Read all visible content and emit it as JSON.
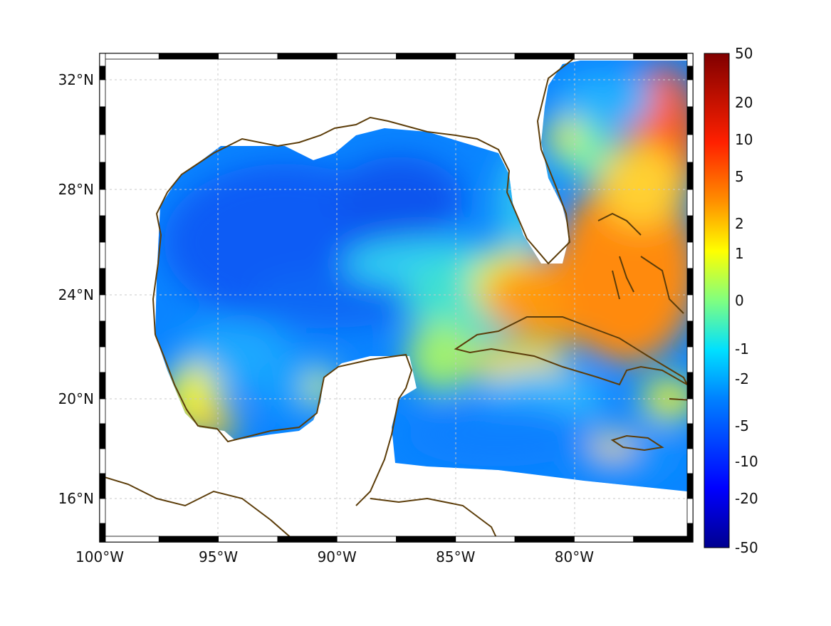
{
  "map": {
    "region": "Gulf of Mexico and Caribbean",
    "lon_range": [
      -100,
      -75
    ],
    "lat_range": [
      14.3,
      33
    ],
    "land_color": "#ffffff",
    "coast_color": "#5c3d0a",
    "graticule": true,
    "lon_ticks": [
      {
        "value": -100,
        "label": "100°W"
      },
      {
        "value": -95,
        "label": "95°W"
      },
      {
        "value": -90,
        "label": "90°W"
      },
      {
        "value": -85,
        "label": "85°W"
      },
      {
        "value": -80,
        "label": "80°W"
      }
    ],
    "lat_ticks": [
      {
        "value": 32,
        "label": "32°N"
      },
      {
        "value": 28,
        "label": "28°N"
      },
      {
        "value": 24,
        "label": "24°N"
      },
      {
        "value": 20,
        "label": "20°N"
      },
      {
        "value": 16,
        "label": "16°N"
      }
    ]
  },
  "colorbar": {
    "colormap": "jet",
    "placement": "right",
    "low_color": "#00008f",
    "mid_color": "#80ff80",
    "high_color": "#800000",
    "ticks": [
      {
        "value": 50,
        "label": "50"
      },
      {
        "value": 20,
        "label": "20"
      },
      {
        "value": 10,
        "label": "10"
      },
      {
        "value": 5,
        "label": "5"
      },
      {
        "value": 2,
        "label": "2"
      },
      {
        "value": 1,
        "label": "1"
      },
      {
        "value": 0,
        "label": "0"
      },
      {
        "value": -1,
        "label": "-1"
      },
      {
        "value": -2,
        "label": "-2"
      },
      {
        "value": -5,
        "label": "-5"
      },
      {
        "value": -10,
        "label": "-10"
      },
      {
        "value": -20,
        "label": "-20"
      },
      {
        "value": -50,
        "label": "-50"
      }
    ]
  },
  "field": {
    "description_values": "approximate field values by region",
    "regions": [
      {
        "name": "western-gulf",
        "value": -5
      },
      {
        "name": "central-gulf",
        "value": -6
      },
      {
        "name": "bay-of-campeche-coast",
        "value": 1
      },
      {
        "name": "yucatan-channel",
        "value": -1
      },
      {
        "name": "florida-straits",
        "value": 3
      },
      {
        "name": "bahamas",
        "value": 6
      },
      {
        "name": "atlantic-east",
        "value": 10
      },
      {
        "name": "caribbean",
        "value": -4
      }
    ]
  }
}
